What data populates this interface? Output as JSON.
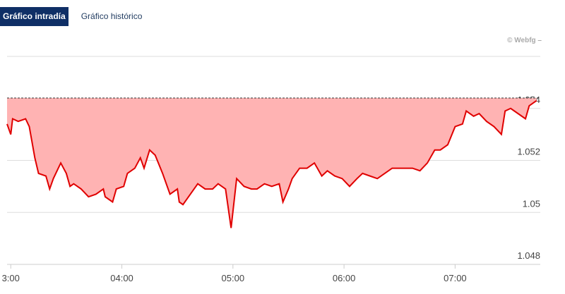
{
  "tabs": [
    "Gráfico intradía",
    "Gráfico histórico"
  ],
  "credit": "© Webfg –",
  "chart_data": {
    "type": "line",
    "x": [
      178,
      180,
      181,
      184,
      188,
      190,
      191,
      193,
      195,
      199,
      201,
      203,
      207,
      210,
      212,
      214,
      218,
      222,
      226,
      230,
      231,
      235,
      237,
      241,
      243,
      247,
      250,
      252,
      255,
      258,
      262,
      266,
      270,
      271,
      273,
      277,
      281,
      285,
      289,
      292,
      296,
      299,
      302,
      306,
      310,
      313,
      317,
      321,
      325,
      327,
      330,
      332,
      336,
      340,
      344,
      348,
      351,
      355,
      359,
      363,
      367,
      370,
      374,
      378,
      382,
      386,
      390,
      393,
      397,
      401,
      405,
      409,
      412,
      416,
      420,
      424,
      426,
      430,
      433,
      437,
      441,
      445,
      447,
      450,
      454,
      458,
      460,
      464
    ],
    "series": [
      {
        "color": "#e00000",
        "fill": "#ffb3b3",
        "values": [
          1.0534,
          1.053,
          1.0536,
          1.0535,
          1.0536,
          1.0533,
          1.0529,
          1.0521,
          1.0515,
          1.0514,
          1.0509,
          1.0513,
          1.0519,
          1.0515,
          1.051,
          1.0511,
          1.0509,
          1.0506,
          1.0507,
          1.0509,
          1.0506,
          1.0504,
          1.0509,
          1.051,
          1.0515,
          1.0517,
          1.0521,
          1.0517,
          1.0524,
          1.0522,
          1.0515,
          1.0507,
          1.0509,
          1.0504,
          1.0503,
          1.0507,
          1.0511,
          1.0509,
          1.0509,
          1.0511,
          1.0509,
          1.0494,
          1.0513,
          1.051,
          1.0509,
          1.0509,
          1.0511,
          1.051,
          1.0511,
          1.0504,
          1.0509,
          1.0513,
          1.0517,
          1.0517,
          1.0519,
          1.0514,
          1.0516,
          1.0514,
          1.0513,
          1.051,
          1.0513,
          1.0515,
          1.0514,
          1.0513,
          1.0515,
          1.0517,
          1.0517,
          1.0517,
          1.0517,
          1.0516,
          1.0519,
          1.0524,
          1.0524,
          1.0526,
          1.0533,
          1.0534,
          1.0539,
          1.0537,
          1.0538,
          1.0535,
          1.0533,
          1.053,
          1.0539,
          1.054,
          1.0538,
          1.0536,
          1.0541,
          1.0543
        ]
      }
    ],
    "reference": 1.0544,
    "xlim": [
      178,
      466
    ],
    "xticks": [
      {
        "value": 180,
        "label": "3:00"
      },
      {
        "value": 240,
        "label": "04:00"
      },
      {
        "value": 300,
        "label": "05:00"
      },
      {
        "value": 360,
        "label": "06:00"
      },
      {
        "value": 420,
        "label": "07:00"
      }
    ],
    "ylim": [
      1.048,
      1.056
    ],
    "yticks": [
      1.048,
      1.05,
      1.052,
      1.054
    ],
    "grid": true
  }
}
